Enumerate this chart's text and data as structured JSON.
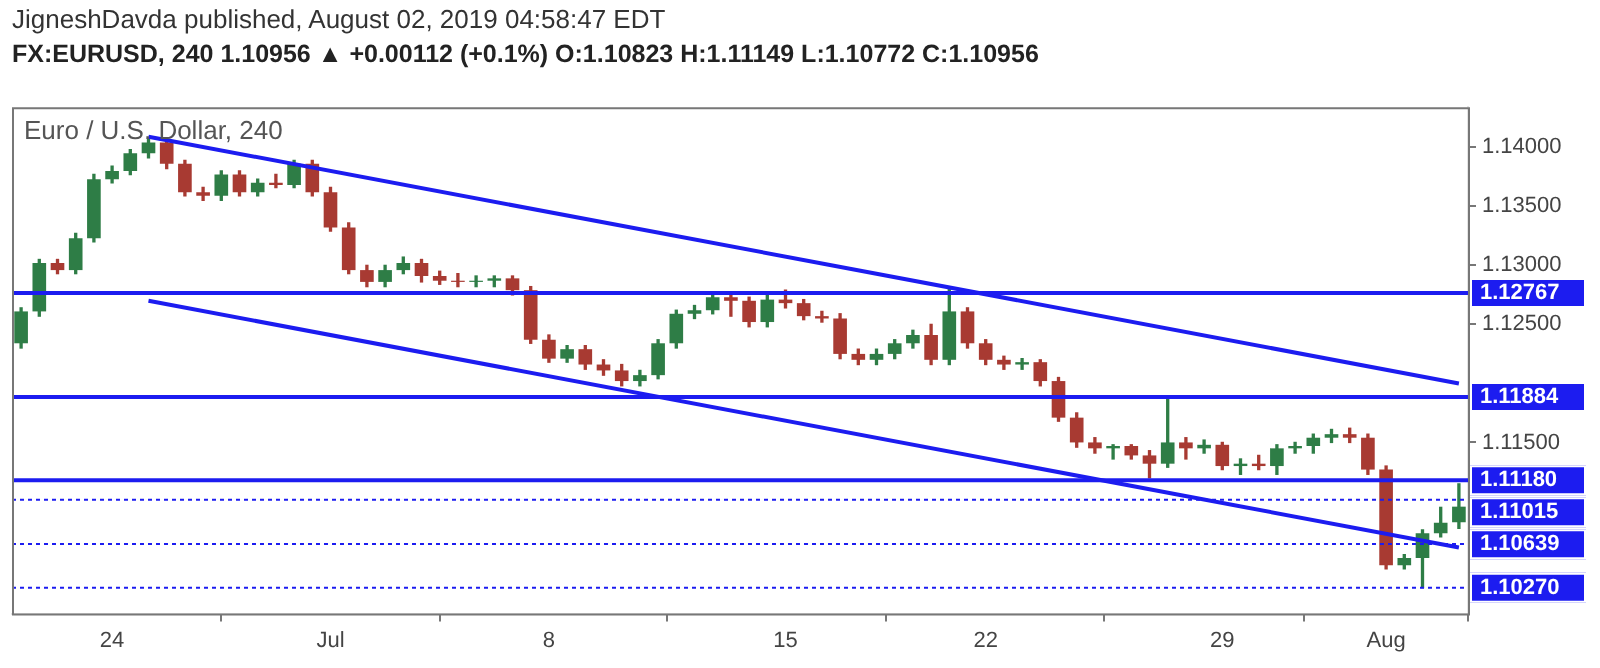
{
  "chart_data": {
    "type": "candlestick",
    "title": "Euro / U.S. Dollar, 240",
    "subtitle": "FX:EURUSD, 240 1.10956 ▲ +0.00112 (+0.1%) O:1.10823 H:1.11149 L:1.10772 C:1.10956",
    "annotations": [
      "JigneshDavda published, August 02, 2019 04:58:47 EDT"
    ],
    "categories": [
      null,
      null,
      null,
      null,
      null,
      "24",
      null,
      null,
      null,
      null,
      null,
      null,
      null,
      null,
      null,
      null,
      null,
      "Jul",
      null,
      null,
      null,
      null,
      null,
      null,
      null,
      null,
      null,
      null,
      null,
      "8",
      null,
      null,
      null,
      null,
      null,
      null,
      null,
      null,
      null,
      null,
      null,
      null,
      "15",
      null,
      null,
      null,
      null,
      null,
      null,
      null,
      null,
      null,
      null,
      "22",
      null,
      null,
      null,
      null,
      null,
      null,
      null,
      null,
      null,
      null,
      null,
      null,
      "29",
      null,
      null,
      null,
      null,
      null,
      null,
      null,
      null,
      "Aug",
      null,
      null,
      null,
      null
    ],
    "series": [
      {
        "ohlc": [
          [
            1.1234,
            1.1264,
            1.123,
            1.1261
          ],
          [
            1.1261,
            1.1305,
            1.1257,
            1.1302
          ],
          [
            1.1302,
            1.1305,
            1.1293,
            1.1296
          ],
          [
            1.1296,
            1.1327,
            1.1293,
            1.1323
          ],
          [
            1.1323,
            1.1377,
            1.132,
            1.1373
          ],
          [
            1.1373,
            1.1384,
            1.137,
            1.138
          ],
          [
            1.138,
            1.1398,
            1.1377,
            1.1395
          ],
          [
            1.1395,
            1.1407,
            1.1391,
            1.1404
          ],
          [
            1.1404,
            1.1407,
            1.1382,
            1.1386
          ],
          [
            1.1386,
            1.1389,
            1.1359,
            1.1362
          ],
          [
            1.1362,
            1.1366,
            1.1355,
            1.1359
          ],
          [
            1.1359,
            1.138,
            1.1355,
            1.1377
          ],
          [
            1.1377,
            1.138,
            1.1359,
            1.1362
          ],
          [
            1.1362,
            1.1373,
            1.1359,
            1.137
          ],
          [
            1.137,
            1.1377,
            1.1366,
            1.1368
          ],
          [
            1.1368,
            1.1389,
            1.1366,
            1.1386
          ],
          [
            1.1386,
            1.1389,
            1.1359,
            1.1362
          ],
          [
            1.1362,
            1.1366,
            1.1329,
            1.1332
          ],
          [
            1.1332,
            1.1336,
            1.1293,
            1.1296
          ],
          [
            1.1296,
            1.13,
            1.1282,
            1.1286
          ],
          [
            1.1286,
            1.13,
            1.1282,
            1.1296
          ],
          [
            1.1296,
            1.1307,
            1.1293,
            1.1302
          ],
          [
            1.1302,
            1.1305,
            1.1286,
            1.1291
          ],
          [
            1.1291,
            1.1295,
            1.1284,
            1.1287
          ],
          [
            1.1287,
            1.1293,
            1.1282,
            1.1286
          ],
          [
            1.1286,
            1.1291,
            1.1282,
            1.1287
          ],
          [
            1.1287,
            1.1291,
            1.1282,
            1.1289
          ],
          [
            1.1289,
            1.1291,
            1.1275,
            1.1279
          ],
          [
            1.1279,
            1.1282,
            1.1234,
            1.1237
          ],
          [
            1.1237,
            1.1241,
            1.1218,
            1.1221
          ],
          [
            1.1221,
            1.1232,
            1.1218,
            1.1229
          ],
          [
            1.1229,
            1.1232,
            1.1212,
            1.1216
          ],
          [
            1.1216,
            1.122,
            1.1207,
            1.1211
          ],
          [
            1.1211,
            1.1216,
            1.1198,
            1.1202
          ],
          [
            1.1202,
            1.1211,
            1.1198,
            1.1207
          ],
          [
            1.1207,
            1.1237,
            1.1204,
            1.1234
          ],
          [
            1.1234,
            1.1262,
            1.123,
            1.1259
          ],
          [
            1.1259,
            1.1266,
            1.1255,
            1.1262
          ],
          [
            1.1262,
            1.1277,
            1.1259,
            1.1273
          ],
          [
            1.1273,
            1.1277,
            1.1257,
            1.127
          ],
          [
            1.127,
            1.1273,
            1.1248,
            1.1252
          ],
          [
            1.1252,
            1.1275,
            1.1248,
            1.1271
          ],
          [
            1.1271,
            1.1279,
            1.1264,
            1.1268
          ],
          [
            1.1268,
            1.1271,
            1.1254,
            1.1257
          ],
          [
            1.1257,
            1.1261,
            1.1252,
            1.1255
          ],
          [
            1.1255,
            1.1259,
            1.1221,
            1.1225
          ],
          [
            1.1225,
            1.1229,
            1.1216,
            1.122
          ],
          [
            1.122,
            1.1229,
            1.1216,
            1.1225
          ],
          [
            1.1225,
            1.1237,
            1.1221,
            1.1234
          ],
          [
            1.1234,
            1.1245,
            1.123,
            1.1241
          ],
          [
            1.1241,
            1.125,
            1.1216,
            1.122
          ],
          [
            1.122,
            1.128,
            1.1216,
            1.1261
          ],
          [
            1.1261,
            1.1264,
            1.123,
            1.1234
          ],
          [
            1.1234,
            1.1237,
            1.1216,
            1.122
          ],
          [
            1.122,
            1.1223,
            1.1212,
            1.1216
          ],
          [
            1.1216,
            1.1221,
            1.1212,
            1.1218
          ],
          [
            1.1218,
            1.122,
            1.1198,
            1.1202
          ],
          [
            1.1202,
            1.1205,
            1.1168,
            1.1171
          ],
          [
            1.1171,
            1.1175,
            1.1146,
            1.115
          ],
          [
            1.115,
            1.1154,
            1.1141,
            1.1145
          ],
          [
            1.1145,
            1.1148,
            1.1136,
            1.1147
          ],
          [
            1.1147,
            1.1148,
            1.1136,
            1.1139
          ],
          [
            1.1139,
            1.1143,
            1.112,
            1.1132
          ],
          [
            1.1132,
            1.1188,
            1.1129,
            1.115
          ],
          [
            1.115,
            1.1154,
            1.1136,
            1.1145
          ],
          [
            1.1145,
            1.1152,
            1.1141,
            1.1148
          ],
          [
            1.1148,
            1.115,
            1.1127,
            1.113
          ],
          [
            1.113,
            1.1136,
            1.1123,
            1.1132
          ],
          [
            1.1132,
            1.1139,
            1.1127,
            1.113
          ],
          [
            1.113,
            1.1148,
            1.1123,
            1.1145
          ],
          [
            1.1145,
            1.115,
            1.1141,
            1.1147
          ],
          [
            1.1147,
            1.1157,
            1.1141,
            1.1154
          ],
          [
            1.1154,
            1.1161,
            1.115,
            1.1157
          ],
          [
            1.1157,
            1.1162,
            1.115,
            1.1154
          ],
          [
            1.1154,
            1.1157,
            1.1123,
            1.1127
          ],
          [
            1.1127,
            1.113,
            1.1043,
            1.1046
          ],
          [
            1.1046,
            1.1055,
            1.1043,
            1.1052
          ],
          [
            1.1052,
            1.1076,
            1.1027,
            1.1073
          ],
          [
            1.1073,
            1.1095,
            1.107,
            1.1082
          ],
          [
            1.10823,
            1.11149,
            1.10772,
            1.10956
          ]
        ],
        "colors": [
          "#2e7d46",
          "#2e7d46",
          "#a83a32",
          "#2e7d46",
          "#2e7d46",
          "#2e7d46",
          "#2e7d46",
          "#2e7d46",
          "#a83a32",
          "#a83a32",
          "#a83a32",
          "#2e7d46",
          "#a83a32",
          "#2e7d46",
          "#a83a32",
          "#2e7d46",
          "#a83a32",
          "#a83a32",
          "#a83a32",
          "#a83a32",
          "#2e7d46",
          "#2e7d46",
          "#a83a32",
          "#a83a32",
          "#a83a32",
          "#2e7d46",
          "#2e7d46",
          "#a83a32",
          "#a83a32",
          "#a83a32",
          "#2e7d46",
          "#a83a32",
          "#a83a32",
          "#a83a32",
          "#2e7d46",
          "#2e7d46",
          "#2e7d46",
          "#2e7d46",
          "#2e7d46",
          "#a83a32",
          "#a83a32",
          "#2e7d46",
          "#a83a32",
          "#a83a32",
          "#a83a32",
          "#a83a32",
          "#a83a32",
          "#2e7d46",
          "#2e7d46",
          "#2e7d46",
          "#a83a32",
          "#2e7d46",
          "#a83a32",
          "#a83a32",
          "#a83a32",
          "#2e7d46",
          "#a83a32",
          "#a83a32",
          "#a83a32",
          "#a83a32",
          "#2e7d46",
          "#a83a32",
          "#a83a32",
          "#2e7d46",
          "#a83a32",
          "#2e7d46",
          "#a83a32",
          "#2e7d46",
          "#a83a32",
          "#2e7d46",
          "#2e7d46",
          "#2e7d46",
          "#2e7d46",
          "#a83a32",
          "#a83a32",
          "#a83a32",
          "#2e7d46",
          "#2e7d46",
          "#2e7d46",
          "#2e7d46"
        ]
      },
      {
        "type": "line",
        "color": "#1c1cf0",
        "values": [
          null,
          null,
          null,
          null,
          null,
          null,
          null,
          1.1409,
          null,
          null,
          null,
          null,
          null,
          null,
          null,
          null,
          null,
          null,
          null,
          null,
          null,
          null,
          null,
          null,
          null,
          null,
          null,
          null,
          null,
          null,
          null,
          null,
          null,
          null,
          null,
          null,
          null,
          null,
          null,
          null,
          null,
          null,
          null,
          null,
          null,
          null,
          null,
          null,
          null,
          null,
          null,
          null,
          null,
          null,
          null,
          null,
          null,
          null,
          null,
          null,
          null,
          null,
          null,
          null,
          null,
          null,
          null,
          null,
          null,
          null,
          null,
          null,
          null,
          null,
          null,
          null,
          null,
          null,
          null,
          1.12
        ]
      },
      {
        "type": "line",
        "color": "#1c1cf0",
        "values": [
          null,
          null,
          null,
          null,
          null,
          null,
          null,
          1.127,
          null,
          null,
          null,
          null,
          null,
          null,
          null,
          null,
          null,
          null,
          null,
          null,
          null,
          null,
          null,
          null,
          null,
          null,
          null,
          null,
          null,
          null,
          null,
          null,
          null,
          null,
          null,
          null,
          null,
          null,
          null,
          null,
          null,
          null,
          null,
          null,
          null,
          null,
          null,
          null,
          null,
          null,
          null,
          null,
          null,
          null,
          null,
          null,
          null,
          null,
          null,
          null,
          null,
          null,
          null,
          null,
          null,
          null,
          null,
          null,
          null,
          null,
          null,
          null,
          null,
          null,
          null,
          null,
          null,
          null,
          null,
          1.1061
        ]
      }
    ],
    "ylim": [
      1.1005,
      1.1434
    ],
    "yticks": [
      {
        "value": 1.14,
        "label": "1.14000"
      },
      {
        "value": 1.135,
        "label": "1.13500"
      },
      {
        "value": 1.13,
        "label": "1.13000"
      },
      {
        "value": 1.125,
        "label": "1.12500"
      },
      {
        "value": 1.115,
        "label": "1.11500"
      }
    ],
    "ref_lines": [
      {
        "axis": "y",
        "value": 1.12767,
        "label": "1.12767",
        "color": "#1c1cf0",
        "line_style": "solid"
      },
      {
        "axis": "y",
        "value": 1.11884,
        "label": "1.11884",
        "color": "#1c1cf0",
        "line_style": "solid"
      },
      {
        "axis": "y",
        "value": 1.1118,
        "label": "1.11180",
        "color": "#1c1cf0",
        "line_style": "solid"
      },
      {
        "axis": "y",
        "value": 1.11015,
        "label": "1.11015",
        "color": "#1c1cf0",
        "line_style": "dotted"
      },
      {
        "axis": "y",
        "value": 1.10639,
        "label": "1.10639",
        "color": "#1c1cf0",
        "line_style": "dotted"
      },
      {
        "axis": "y",
        "value": 1.1027,
        "label": "1.10270",
        "color": "#1c1cf0",
        "line_style": "dotted"
      }
    ]
  }
}
